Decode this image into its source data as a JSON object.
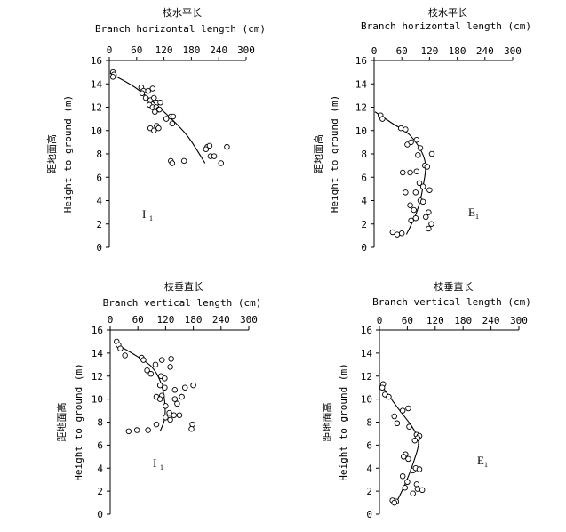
{
  "chart_data": [
    {
      "type": "scatter",
      "panel": "top-left",
      "title_cn": "枝水平长",
      "title": "Branch horizontal length (cm)",
      "ylabel_cn": "距地面高",
      "ylabel": "Height to ground (m)",
      "panel_label": "I",
      "panel_label_sub": "1",
      "xlim": [
        0,
        300
      ],
      "ylim": [
        0,
        16
      ],
      "xticks": [
        "0",
        "60",
        "120",
        "180",
        "240",
        "300"
      ],
      "yticks": [
        "0",
        "2",
        "4",
        "6",
        "8",
        "10",
        "12",
        "14",
        "16"
      ],
      "points": [
        [
          8,
          15.0
        ],
        [
          10,
          14.8
        ],
        [
          8,
          14.6
        ],
        [
          70,
          13.7
        ],
        [
          75,
          13.4
        ],
        [
          72,
          13.2
        ],
        [
          85,
          13.4
        ],
        [
          95,
          13.6
        ],
        [
          80,
          12.8
        ],
        [
          90,
          12.6
        ],
        [
          98,
          12.8
        ],
        [
          105,
          12.4
        ],
        [
          112,
          12.4
        ],
        [
          88,
          12.2
        ],
        [
          95,
          12.0
        ],
        [
          103,
          12.0
        ],
        [
          108,
          11.8
        ],
        [
          100,
          11.6
        ],
        [
          110,
          11.8
        ],
        [
          125,
          11.0
        ],
        [
          135,
          11.2
        ],
        [
          140,
          11.2
        ],
        [
          138,
          10.6
        ],
        [
          90,
          10.2
        ],
        [
          98,
          10.0
        ],
        [
          104,
          10.4
        ],
        [
          108,
          10.2
        ],
        [
          215,
          8.6
        ],
        [
          212,
          8.4
        ],
        [
          220,
          8.7
        ],
        [
          258,
          8.6
        ],
        [
          222,
          7.8
        ],
        [
          230,
          7.8
        ],
        [
          245,
          7.2
        ],
        [
          135,
          7.4
        ],
        [
          138,
          7.2
        ],
        [
          164,
          7.4
        ]
      ],
      "curve": [
        [
          2,
          14.9
        ],
        [
          60,
          13.6
        ],
        [
          120,
          11.6
        ],
        [
          170,
          9.6
        ],
        [
          210,
          7.2
        ]
      ]
    },
    {
      "type": "scatter",
      "panel": "top-right",
      "title_cn": "枝水平长",
      "title": "Branch horizontal length (cm)",
      "ylabel_cn": "距地面高",
      "ylabel": "Height to ground (m)",
      "panel_label": "E",
      "panel_label_sub": "1",
      "xlim": [
        0,
        300
      ],
      "ylim": [
        0,
        16
      ],
      "xticks": [
        "0",
        "60",
        "120",
        "180",
        "240",
        "300"
      ],
      "yticks": [
        "0",
        "2",
        "4",
        "6",
        "8",
        "10",
        "12",
        "14",
        "16"
      ],
      "points": [
        [
          14,
          11.3
        ],
        [
          18,
          11.0
        ],
        [
          58,
          10.2
        ],
        [
          68,
          10.1
        ],
        [
          92,
          9.2
        ],
        [
          72,
          8.8
        ],
        [
          80,
          9.0
        ],
        [
          100,
          8.5
        ],
        [
          125,
          8.0
        ],
        [
          95,
          7.9
        ],
        [
          110,
          7.0
        ],
        [
          115,
          6.9
        ],
        [
          62,
          6.4
        ],
        [
          78,
          6.4
        ],
        [
          92,
          6.5
        ],
        [
          98,
          5.5
        ],
        [
          106,
          5.2
        ],
        [
          120,
          4.9
        ],
        [
          68,
          4.7
        ],
        [
          90,
          4.7
        ],
        [
          100,
          4.0
        ],
        [
          106,
          3.9
        ],
        [
          78,
          3.6
        ],
        [
          86,
          3.2
        ],
        [
          118,
          3.0
        ],
        [
          80,
          2.3
        ],
        [
          90,
          2.5
        ],
        [
          112,
          2.6
        ],
        [
          124,
          2.0
        ],
        [
          118,
          1.6
        ],
        [
          40,
          1.3
        ],
        [
          50,
          1.1
        ],
        [
          60,
          1.2
        ]
      ],
      "curve": [
        [
          2,
          11.6
        ],
        [
          40,
          10.6
        ],
        [
          80,
          9.5
        ],
        [
          110,
          7.4
        ],
        [
          105,
          5.0
        ],
        [
          92,
          3.0
        ],
        [
          70,
          1.1
        ]
      ]
    },
    {
      "type": "scatter",
      "panel": "bottom-left",
      "title_cn": "枝垂直长",
      "title": "Branch vertical length (cm)",
      "ylabel_cn": "距地面高",
      "ylabel": "Height to ground (m)",
      "panel_label": "I",
      "panel_label_sub": "1",
      "xlim": [
        0,
        300
      ],
      "ylim": [
        0,
        16
      ],
      "xticks": [
        "0",
        "60",
        "120",
        "180",
        "240",
        "300"
      ],
      "yticks": [
        "0",
        "2",
        "4",
        "6",
        "8",
        "10",
        "12",
        "14",
        "16"
      ],
      "points": [
        [
          14,
          15.0
        ],
        [
          18,
          14.7
        ],
        [
          22,
          14.4
        ],
        [
          32,
          13.8
        ],
        [
          68,
          13.6
        ],
        [
          72,
          13.4
        ],
        [
          98,
          13.0
        ],
        [
          112,
          13.4
        ],
        [
          132,
          13.5
        ],
        [
          130,
          12.8
        ],
        [
          80,
          12.5
        ],
        [
          88,
          12.2
        ],
        [
          110,
          12.0
        ],
        [
          118,
          11.8
        ],
        [
          108,
          11.2
        ],
        [
          118,
          11.0
        ],
        [
          180,
          11.2
        ],
        [
          162,
          11.0
        ],
        [
          140,
          10.8
        ],
        [
          100,
          10.2
        ],
        [
          112,
          10.3
        ],
        [
          108,
          10.0
        ],
        [
          140,
          10.0
        ],
        [
          155,
          10.2
        ],
        [
          145,
          9.6
        ],
        [
          120,
          9.4
        ],
        [
          128,
          8.8
        ],
        [
          130,
          8.2
        ],
        [
          120,
          8.4
        ],
        [
          138,
          8.6
        ],
        [
          150,
          8.6
        ],
        [
          178,
          7.8
        ],
        [
          176,
          7.4
        ],
        [
          100,
          7.8
        ],
        [
          82,
          7.3
        ],
        [
          40,
          7.2
        ],
        [
          58,
          7.3
        ]
      ],
      "curve": [
        [
          12,
          14.8
        ],
        [
          55,
          13.8
        ],
        [
          90,
          12.8
        ],
        [
          110,
          11.4
        ],
        [
          118,
          9.8
        ],
        [
          118,
          8.3
        ],
        [
          108,
          7.2
        ]
      ]
    },
    {
      "type": "scatter",
      "panel": "bottom-right",
      "title_cn": "枝垂直长",
      "title": "Branch vertical length (cm)",
      "ylabel_cn": "距地面高",
      "ylabel": "Height to ground (m)",
      "panel_label": "E",
      "panel_label_sub": "1",
      "xlim": [
        0,
        300
      ],
      "ylim": [
        0,
        16
      ],
      "xticks": [
        "0",
        "60",
        "120",
        "180",
        "240",
        "300"
      ],
      "yticks": [
        "0",
        "2",
        "4",
        "6",
        "8",
        "10",
        "12",
        "14",
        "16"
      ],
      "points": [
        [
          8,
          11.3
        ],
        [
          6,
          11.0
        ],
        [
          12,
          10.4
        ],
        [
          20,
          10.2
        ],
        [
          50,
          9.0
        ],
        [
          62,
          9.2
        ],
        [
          32,
          8.5
        ],
        [
          38,
          7.9
        ],
        [
          64,
          7.6
        ],
        [
          80,
          6.9
        ],
        [
          86,
          6.8
        ],
        [
          82,
          6.6
        ],
        [
          76,
          6.4
        ],
        [
          56,
          5.2
        ],
        [
          52,
          5.0
        ],
        [
          62,
          4.8
        ],
        [
          72,
          3.8
        ],
        [
          78,
          4.0
        ],
        [
          86,
          3.9
        ],
        [
          50,
          3.3
        ],
        [
          60,
          2.8
        ],
        [
          80,
          2.6
        ],
        [
          55,
          2.3
        ],
        [
          82,
          2.2
        ],
        [
          92,
          2.1
        ],
        [
          72,
          1.8
        ],
        [
          28,
          1.2
        ],
        [
          36,
          1.1
        ],
        [
          32,
          1.0
        ]
      ],
      "curve": [
        [
          4,
          11.2
        ],
        [
          40,
          9.2
        ],
        [
          70,
          7.6
        ],
        [
          84,
          6.3
        ],
        [
          74,
          4.6
        ],
        [
          55,
          2.6
        ],
        [
          36,
          1.0
        ]
      ]
    }
  ]
}
